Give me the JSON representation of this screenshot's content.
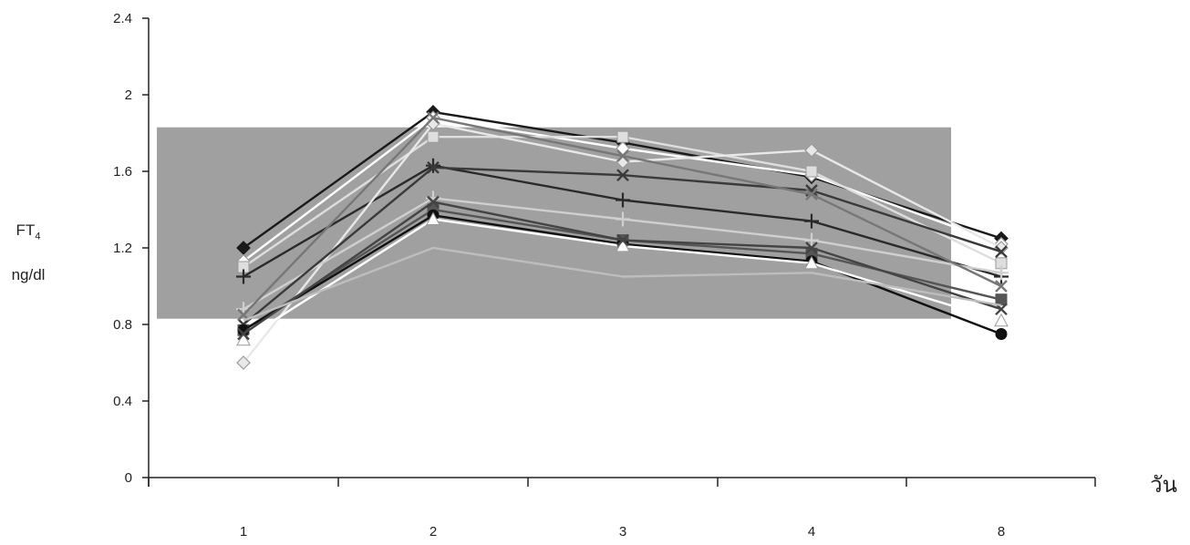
{
  "chart_data": {
    "type": "line",
    "ylabel_line1_main": "FT",
    "ylabel_line1_sub": "4",
    "ylabel_line2": "ng/dl",
    "xlabel": "วัน",
    "categories": [
      "1",
      "2",
      "3",
      "4",
      "8"
    ],
    "ylim": [
      0,
      2.4
    ],
    "yticks": [
      "0",
      "0.4",
      "0.8",
      "1.2",
      "1.6",
      "2",
      "2.4"
    ],
    "reference_band": {
      "from": 0.83,
      "to": 1.83,
      "color": "#a0a0a0"
    },
    "grid": false,
    "legend": "none",
    "series": [
      {
        "values": [
          1.2,
          1.91,
          1.75,
          1.57,
          1.25
        ],
        "color": "#1a1a1a",
        "marker": "diamond"
      },
      {
        "values": [
          1.13,
          1.88,
          1.72,
          1.58,
          1.22
        ],
        "color": "#ffffff",
        "marker": "diamond"
      },
      {
        "values": [
          1.1,
          1.78,
          1.78,
          1.6,
          1.12
        ],
        "color": "#dedede",
        "marker": "square"
      },
      {
        "values": [
          1.05,
          1.63,
          1.45,
          1.34,
          1.05
        ],
        "color": "#2a2a2a",
        "marker": "plus"
      },
      {
        "values": [
          0.6,
          1.85,
          1.65,
          1.71,
          1.2
        ],
        "color": "#e8e8e8",
        "marker": "diamond"
      },
      {
        "values": [
          0.88,
          1.46,
          1.35,
          1.24,
          1.07
        ],
        "color": "#cfcfcf",
        "marker": "plus"
      },
      {
        "values": [
          0.8,
          1.62,
          1.58,
          1.5,
          1.18
        ],
        "color": "#3a3a3a",
        "marker": "x"
      },
      {
        "values": [
          0.77,
          1.4,
          1.24,
          1.17,
          0.93
        ],
        "color": "#555555",
        "marker": "square"
      },
      {
        "values": [
          0.77,
          1.37,
          1.22,
          1.13,
          0.75
        ],
        "color": "#111111",
        "marker": "circle"
      },
      {
        "values": [
          0.72,
          1.35,
          1.21,
          1.12,
          0.82
        ],
        "color": "#ffffff",
        "marker": "triangle"
      },
      {
        "values": [
          0.75,
          1.44,
          1.24,
          1.2,
          0.88
        ],
        "color": "#444444",
        "marker": "x"
      },
      {
        "values": [
          0.85,
          1.88,
          1.68,
          1.48,
          1.0
        ],
        "color": "#777777",
        "marker": "x"
      },
      {
        "values": [
          0.82,
          1.2,
          1.05,
          1.07,
          0.9
        ],
        "color": "#bdbdbd",
        "marker": "none"
      }
    ]
  }
}
